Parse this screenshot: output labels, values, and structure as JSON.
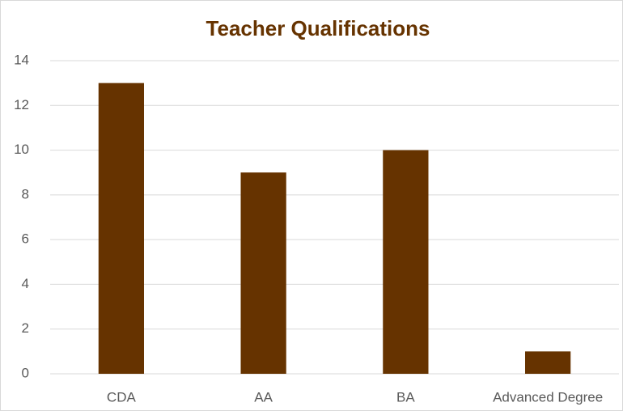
{
  "chart_data": {
    "type": "bar",
    "title": "Teacher Qualifications",
    "categories": [
      "CDA",
      "AA",
      "BA",
      "Advanced Degree"
    ],
    "values": [
      13,
      9,
      10,
      1
    ],
    "color": "#663300",
    "ylim": [
      0,
      14
    ],
    "yticks": [
      0,
      2,
      4,
      6,
      8,
      10,
      12,
      14
    ],
    "grid": true
  }
}
